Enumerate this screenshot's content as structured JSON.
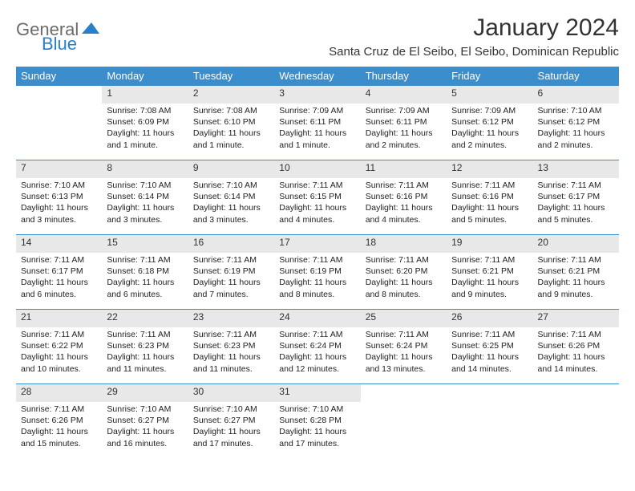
{
  "logo": {
    "part1": "General",
    "part2": "Blue"
  },
  "title": "January 2024",
  "location": "Santa Cruz de El Seibo, El Seibo, Dominican Republic",
  "colors": {
    "header_bg": "#3c8dcc",
    "header_text": "#ffffff",
    "daynum_bg": "#e8e8e8",
    "border": "#3c8dcc",
    "logo_gray": "#6b6b6b",
    "logo_blue": "#2a7fc9"
  },
  "weekdays": [
    "Sunday",
    "Monday",
    "Tuesday",
    "Wednesday",
    "Thursday",
    "Friday",
    "Saturday"
  ],
  "weeks": [
    [
      null,
      {
        "n": "1",
        "sr": "7:08 AM",
        "ss": "6:09 PM",
        "dl": "11 hours and 1 minute."
      },
      {
        "n": "2",
        "sr": "7:08 AM",
        "ss": "6:10 PM",
        "dl": "11 hours and 1 minute."
      },
      {
        "n": "3",
        "sr": "7:09 AM",
        "ss": "6:11 PM",
        "dl": "11 hours and 1 minute."
      },
      {
        "n": "4",
        "sr": "7:09 AM",
        "ss": "6:11 PM",
        "dl": "11 hours and 2 minutes."
      },
      {
        "n": "5",
        "sr": "7:09 AM",
        "ss": "6:12 PM",
        "dl": "11 hours and 2 minutes."
      },
      {
        "n": "6",
        "sr": "7:10 AM",
        "ss": "6:12 PM",
        "dl": "11 hours and 2 minutes."
      }
    ],
    [
      {
        "n": "7",
        "sr": "7:10 AM",
        "ss": "6:13 PM",
        "dl": "11 hours and 3 minutes."
      },
      {
        "n": "8",
        "sr": "7:10 AM",
        "ss": "6:14 PM",
        "dl": "11 hours and 3 minutes."
      },
      {
        "n": "9",
        "sr": "7:10 AM",
        "ss": "6:14 PM",
        "dl": "11 hours and 3 minutes."
      },
      {
        "n": "10",
        "sr": "7:11 AM",
        "ss": "6:15 PM",
        "dl": "11 hours and 4 minutes."
      },
      {
        "n": "11",
        "sr": "7:11 AM",
        "ss": "6:16 PM",
        "dl": "11 hours and 4 minutes."
      },
      {
        "n": "12",
        "sr": "7:11 AM",
        "ss": "6:16 PM",
        "dl": "11 hours and 5 minutes."
      },
      {
        "n": "13",
        "sr": "7:11 AM",
        "ss": "6:17 PM",
        "dl": "11 hours and 5 minutes."
      }
    ],
    [
      {
        "n": "14",
        "sr": "7:11 AM",
        "ss": "6:17 PM",
        "dl": "11 hours and 6 minutes."
      },
      {
        "n": "15",
        "sr": "7:11 AM",
        "ss": "6:18 PM",
        "dl": "11 hours and 6 minutes."
      },
      {
        "n": "16",
        "sr": "7:11 AM",
        "ss": "6:19 PM",
        "dl": "11 hours and 7 minutes."
      },
      {
        "n": "17",
        "sr": "7:11 AM",
        "ss": "6:19 PM",
        "dl": "11 hours and 8 minutes."
      },
      {
        "n": "18",
        "sr": "7:11 AM",
        "ss": "6:20 PM",
        "dl": "11 hours and 8 minutes."
      },
      {
        "n": "19",
        "sr": "7:11 AM",
        "ss": "6:21 PM",
        "dl": "11 hours and 9 minutes."
      },
      {
        "n": "20",
        "sr": "7:11 AM",
        "ss": "6:21 PM",
        "dl": "11 hours and 9 minutes."
      }
    ],
    [
      {
        "n": "21",
        "sr": "7:11 AM",
        "ss": "6:22 PM",
        "dl": "11 hours and 10 minutes."
      },
      {
        "n": "22",
        "sr": "7:11 AM",
        "ss": "6:23 PM",
        "dl": "11 hours and 11 minutes."
      },
      {
        "n": "23",
        "sr": "7:11 AM",
        "ss": "6:23 PM",
        "dl": "11 hours and 11 minutes."
      },
      {
        "n": "24",
        "sr": "7:11 AM",
        "ss": "6:24 PM",
        "dl": "11 hours and 12 minutes."
      },
      {
        "n": "25",
        "sr": "7:11 AM",
        "ss": "6:24 PM",
        "dl": "11 hours and 13 minutes."
      },
      {
        "n": "26",
        "sr": "7:11 AM",
        "ss": "6:25 PM",
        "dl": "11 hours and 14 minutes."
      },
      {
        "n": "27",
        "sr": "7:11 AM",
        "ss": "6:26 PM",
        "dl": "11 hours and 14 minutes."
      }
    ],
    [
      {
        "n": "28",
        "sr": "7:11 AM",
        "ss": "6:26 PM",
        "dl": "11 hours and 15 minutes."
      },
      {
        "n": "29",
        "sr": "7:10 AM",
        "ss": "6:27 PM",
        "dl": "11 hours and 16 minutes."
      },
      {
        "n": "30",
        "sr": "7:10 AM",
        "ss": "6:27 PM",
        "dl": "11 hours and 17 minutes."
      },
      {
        "n": "31",
        "sr": "7:10 AM",
        "ss": "6:28 PM",
        "dl": "11 hours and 17 minutes."
      },
      null,
      null,
      null
    ]
  ],
  "labels": {
    "sunrise": "Sunrise:",
    "sunset": "Sunset:",
    "daylight": "Daylight:"
  }
}
